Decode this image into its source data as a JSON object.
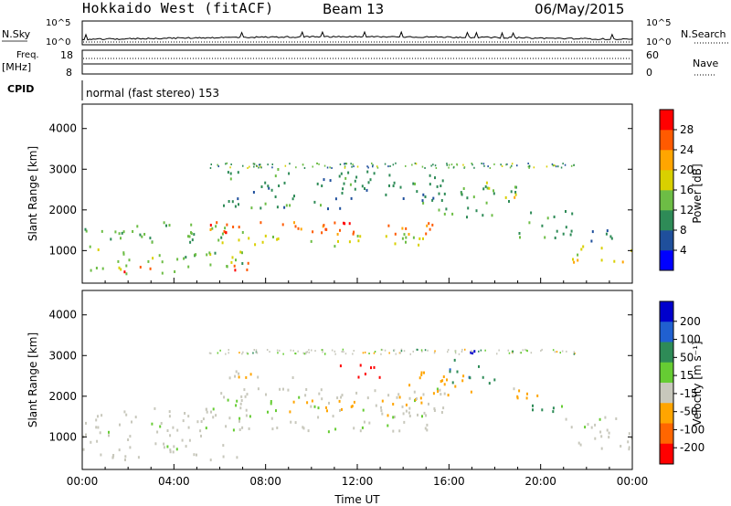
{
  "header": {
    "station": "Hokkaido West (fitACF)",
    "beam": "Beam 13",
    "date": "06/May/2015"
  },
  "top_panel": {
    "n_sky_label": "N.Sky",
    "n_search_label": "N.Search",
    "left_ticks": [
      "10^5",
      "10^0"
    ],
    "right_ticks": [
      "10^5",
      "10^0"
    ],
    "freq_label": "Freq.",
    "freq_unit": "[MHz]",
    "freq_ticks": [
      "18",
      "8"
    ],
    "nave_label": "Nave",
    "nave_ticks": [
      "60",
      "0"
    ],
    "cpid_label": "CPID",
    "cpid_text": "normal (fast stereo) 153"
  },
  "colors": {
    "power_scale": [
      "#0000ff",
      "#1f4f9c",
      "#2e8b57",
      "#6dbd45",
      "#d9d000",
      "#ffa500",
      "#ff5a00",
      "#ff0000"
    ],
    "velocity_scale": [
      "#0000cc",
      "#2060d0",
      "#2e8b57",
      "#66cc33",
      "#c8c8bc",
      "#ffa500",
      "#ff6600",
      "#ff0000"
    ]
  },
  "chart_data": [
    {
      "type": "heatmap",
      "name": "power",
      "ylabel": "Slant Range [km]",
      "xlabel": "",
      "yticks": [
        "1000",
        "2000",
        "3000",
        "4000"
      ],
      "ylim": [
        200,
        4600
      ],
      "xlim_hours": [
        0,
        24
      ],
      "colorbar": {
        "label": "Power [dB]",
        "ticks": [
          "4",
          "8",
          "12",
          "16",
          "20",
          "24",
          "28"
        ],
        "range": [
          0,
          32
        ]
      },
      "bands": [
        {
          "t": [
            0,
            7
          ],
          "r": [
            1200,
            1700
          ],
          "dB": 12
        },
        {
          "t": [
            0,
            7
          ],
          "r": [
            400,
            1100
          ],
          "dB": 14
        },
        {
          "t": [
            1.5,
            3.2
          ],
          "r": [
            450,
            700
          ],
          "dB": 27
        },
        {
          "t": [
            6.5,
            7.5
          ],
          "r": [
            450,
            800
          ],
          "dB": 28
        },
        {
          "t": [
            5.5,
            16
          ],
          "r": [
            1400,
            1700
          ],
          "dB": 26
        },
        {
          "t": [
            6,
            15
          ],
          "r": [
            1100,
            1400
          ],
          "dB": 17
        },
        {
          "t": [
            6,
            16
          ],
          "r": [
            2000,
            3000
          ],
          "dB": 10
        },
        {
          "t": [
            15.5,
            19
          ],
          "r": [
            1800,
            2600
          ],
          "dB": 12
        },
        {
          "t": [
            17.5,
            19
          ],
          "r": [
            2300,
            2700
          ],
          "dB": 18
        },
        {
          "t": [
            19,
            21.5
          ],
          "r": [
            1300,
            2000
          ],
          "dB": 11
        },
        {
          "t": [
            21,
            24
          ],
          "r": [
            700,
            1100
          ],
          "dB": 18
        },
        {
          "t": [
            21,
            24
          ],
          "r": [
            1200,
            1500
          ],
          "dB": 9
        },
        {
          "t": [
            13,
            15.5
          ],
          "r": [
            1400,
            1700
          ],
          "dB": 24
        }
      ]
    },
    {
      "type": "heatmap",
      "name": "velocity",
      "ylabel": "Slant Range [km]",
      "xlabel": "Time UT",
      "xticks": [
        "00:00",
        "04:00",
        "08:00",
        "12:00",
        "16:00",
        "20:00",
        "00:00"
      ],
      "yticks": [
        "1000",
        "2000",
        "3000",
        "4000"
      ],
      "ylim": [
        200,
        4600
      ],
      "xlim_hours": [
        0,
        24
      ],
      "colorbar": {
        "label": "Velocity [m s⁻¹]",
        "ticks": [
          "200",
          "100",
          "50",
          "15",
          "-15",
          "-50",
          "-100",
          "-200"
        ]
      },
      "bands": [
        {
          "t": [
            0,
            7
          ],
          "r": [
            400,
            1700
          ],
          "v": 0
        },
        {
          "t": [
            6,
            16
          ],
          "r": [
            1100,
            2200
          ],
          "v": 0
        },
        {
          "t": [
            9,
            15
          ],
          "r": [
            1500,
            2000
          ],
          "v": -40
        },
        {
          "t": [
            11,
            13
          ],
          "r": [
            2400,
            2800
          ],
          "v": -200
        },
        {
          "t": [
            14,
            17
          ],
          "r": [
            2000,
            2600
          ],
          "v": -60
        },
        {
          "t": [
            16,
            18
          ],
          "r": [
            2300,
            2900
          ],
          "v": 60
        },
        {
          "t": [
            16.5,
            17.5
          ],
          "r": [
            2900,
            3150
          ],
          "v": 220
        },
        {
          "t": [
            18,
            20
          ],
          "r": [
            1900,
            2200
          ],
          "v": -40
        },
        {
          "t": [
            19.5,
            21
          ],
          "r": [
            1600,
            2000
          ],
          "v": 40
        },
        {
          "t": [
            21,
            24
          ],
          "r": [
            700,
            1500
          ],
          "v": 0
        },
        {
          "t": [
            6,
            10
          ],
          "r": [
            2400,
            2700
          ],
          "v": -30
        }
      ]
    }
  ]
}
